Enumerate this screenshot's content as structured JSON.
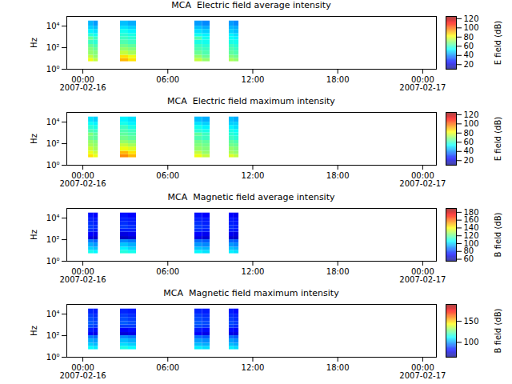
{
  "chart_data": [
    {
      "type": "heatmap",
      "title": "MCA  Electric field average intensity",
      "ylabel": "Hz",
      "log": "y",
      "xlim": [
        "2007-02-15T22:52",
        "2007-02-17T00:58"
      ],
      "xticks": [
        {
          "value": "2007-02-16T00:00",
          "label": "00:00\n2007-02-16"
        },
        {
          "value": "2007-02-16T06:00",
          "label": "06:00"
        },
        {
          "value": "2007-02-16T12:00",
          "label": "12:00"
        },
        {
          "value": "2007-02-16T18:00",
          "label": "18:00"
        },
        {
          "value": "2007-02-17T00:00",
          "label": "00:00\n2007-02-17"
        }
      ],
      "ylim": [
        1,
        80000
      ],
      "yticks": [
        {
          "value": 1,
          "label": "10⁰"
        },
        {
          "value": 100,
          "label": "10²"
        },
        {
          "value": 10000,
          "label": "10⁴"
        }
      ],
      "x_bins": [
        [
          "2007-02-16T00:24",
          "2007-02-16T00:45"
        ],
        [
          "2007-02-16T00:45",
          "2007-02-16T01:05"
        ],
        [
          "2007-02-16T02:39",
          "2007-02-16T03:13"
        ],
        [
          "2007-02-16T03:13",
          "2007-02-16T03:47"
        ],
        [
          "2007-02-16T07:54",
          "2007-02-16T08:26"
        ],
        [
          "2007-02-16T08:26",
          "2007-02-16T08:59"
        ],
        [
          "2007-02-16T10:20",
          "2007-02-16T10:40"
        ],
        [
          "2007-02-16T10:40",
          "2007-02-16T11:01"
        ]
      ],
      "y_bins": [
        5,
        10,
        20,
        50,
        100,
        200,
        500,
        1000,
        2000,
        5000,
        10000,
        30000
      ],
      "cells": [
        [
          80,
          75,
          90,
          85,
          75,
          70,
          72,
          70
        ],
        [
          75,
          70,
          85,
          80,
          70,
          65,
          68,
          66
        ],
        [
          70,
          68,
          75,
          72,
          65,
          62,
          64,
          62
        ],
        [
          68,
          65,
          70,
          68,
          62,
          60,
          62,
          60
        ],
        [
          65,
          62,
          66,
          64,
          60,
          58,
          60,
          58
        ],
        [
          60,
          58,
          62,
          60,
          56,
          55,
          56,
          55
        ],
        [
          65,
          60,
          60,
          58,
          62,
          55,
          54,
          52
        ],
        [
          58,
          55,
          58,
          56,
          55,
          52,
          52,
          50
        ],
        [
          52,
          50,
          55,
          52,
          50,
          48,
          48,
          46
        ],
        [
          48,
          46,
          50,
          48,
          46,
          44,
          45,
          44
        ],
        [
          45,
          42,
          46,
          44,
          42,
          40,
          42,
          40
        ]
      ],
      "colorbar": {
        "label": "E field (dB)",
        "range": [
          10,
          125
        ],
        "ticks": [
          20,
          40,
          60,
          80,
          100,
          120
        ]
      }
    },
    {
      "type": "heatmap",
      "title": "MCA  Electric field maximum intensity",
      "ylabel": "Hz",
      "log": "y",
      "xlim": [
        "2007-02-15T22:52",
        "2007-02-17T00:58"
      ],
      "xticks": [
        {
          "value": "2007-02-16T00:00",
          "label": "00:00\n2007-02-16"
        },
        {
          "value": "2007-02-16T06:00",
          "label": "06:00"
        },
        {
          "value": "2007-02-16T12:00",
          "label": "12:00"
        },
        {
          "value": "2007-02-16T18:00",
          "label": "18:00"
        },
        {
          "value": "2007-02-17T00:00",
          "label": "00:00\n2007-02-17"
        }
      ],
      "ylim": [
        1,
        80000
      ],
      "yticks": [
        {
          "value": 1,
          "label": "10⁰"
        },
        {
          "value": 100,
          "label": "10²"
        },
        {
          "value": 10000,
          "label": "10⁴"
        }
      ],
      "x_bins": [
        [
          "2007-02-16T00:24",
          "2007-02-16T00:45"
        ],
        [
          "2007-02-16T00:45",
          "2007-02-16T01:05"
        ],
        [
          "2007-02-16T02:39",
          "2007-02-16T03:13"
        ],
        [
          "2007-02-16T03:13",
          "2007-02-16T03:47"
        ],
        [
          "2007-02-16T07:54",
          "2007-02-16T08:26"
        ],
        [
          "2007-02-16T08:26",
          "2007-02-16T08:59"
        ],
        [
          "2007-02-16T10:20",
          "2007-02-16T10:40"
        ],
        [
          "2007-02-16T10:40",
          "2007-02-16T11:01"
        ]
      ],
      "y_bins": [
        5,
        10,
        20,
        50,
        100,
        200,
        500,
        1000,
        2000,
        5000,
        10000,
        30000
      ],
      "cells": [
        [
          85,
          80,
          95,
          90,
          80,
          75,
          78,
          75
        ],
        [
          80,
          76,
          90,
          85,
          75,
          70,
          72,
          70
        ],
        [
          76,
          72,
          80,
          78,
          70,
          68,
          70,
          68
        ],
        [
          72,
          70,
          75,
          72,
          68,
          66,
          66,
          65
        ],
        [
          70,
          68,
          70,
          68,
          66,
          64,
          64,
          62
        ],
        [
          66,
          64,
          66,
          64,
          62,
          60,
          60,
          58
        ],
        [
          68,
          64,
          64,
          62,
          64,
          60,
          58,
          56
        ],
        [
          62,
          60,
          62,
          60,
          58,
          56,
          56,
          54
        ],
        [
          58,
          56,
          60,
          56,
          55,
          52,
          52,
          50
        ],
        [
          54,
          52,
          55,
          52,
          50,
          48,
          48,
          48
        ],
        [
          50,
          48,
          52,
          50,
          46,
          44,
          46,
          44
        ]
      ],
      "colorbar": {
        "label": "E field (dB)",
        "range": [
          10,
          125
        ],
        "ticks": [
          20,
          40,
          60,
          80,
          100,
          120
        ]
      }
    },
    {
      "type": "heatmap",
      "title": "MCA  Magnetic field average intensity",
      "ylabel": "Hz",
      "log": "y",
      "xlim": [
        "2007-02-15T22:52",
        "2007-02-17T00:58"
      ],
      "xticks": [
        {
          "value": "2007-02-16T00:00",
          "label": "00:00\n2007-02-16"
        },
        {
          "value": "2007-02-16T06:00",
          "label": "06:00"
        },
        {
          "value": "2007-02-16T12:00",
          "label": "12:00"
        },
        {
          "value": "2007-02-16T18:00",
          "label": "18:00"
        },
        {
          "value": "2007-02-17T00:00",
          "label": "00:00\n2007-02-17"
        }
      ],
      "ylim": [
        1,
        80000
      ],
      "yticks": [
        {
          "value": 1,
          "label": "10⁰"
        },
        {
          "value": 100,
          "label": "10²"
        },
        {
          "value": 10000,
          "label": "10⁴"
        }
      ],
      "x_bins": [
        [
          "2007-02-16T00:24",
          "2007-02-16T00:45"
        ],
        [
          "2007-02-16T00:45",
          "2007-02-16T01:05"
        ],
        [
          "2007-02-16T02:39",
          "2007-02-16T03:13"
        ],
        [
          "2007-02-16T03:13",
          "2007-02-16T03:47"
        ],
        [
          "2007-02-16T07:54",
          "2007-02-16T08:26"
        ],
        [
          "2007-02-16T08:26",
          "2007-02-16T08:59"
        ],
        [
          "2007-02-16T10:20",
          "2007-02-16T10:40"
        ],
        [
          "2007-02-16T10:40",
          "2007-02-16T11:01"
        ]
      ],
      "y_bins": [
        5,
        10,
        20,
        50,
        100,
        200,
        500,
        1000,
        2000,
        5000,
        10000,
        30000
      ],
      "cells": [
        [
          108,
          105,
          110,
          108,
          105,
          102,
          104,
          102
        ],
        [
          100,
          98,
          104,
          100,
          98,
          96,
          98,
          96
        ],
        [
          95,
          92,
          98,
          95,
          92,
          90,
          92,
          90
        ],
        [
          88,
          85,
          90,
          88,
          86,
          84,
          85,
          84
        ],
        [
          68,
          66,
          64,
          66,
          68,
          66,
          66,
          65
        ],
        [
          72,
          70,
          68,
          70,
          72,
          70,
          70,
          68
        ],
        [
          78,
          76,
          76,
          76,
          78,
          76,
          76,
          75
        ],
        [
          80,
          78,
          80,
          78,
          80,
          78,
          78,
          76
        ],
        [
          78,
          76,
          78,
          76,
          78,
          76,
          76,
          75
        ],
        [
          76,
          75,
          76,
          75,
          76,
          75,
          75,
          74
        ],
        [
          74,
          72,
          74,
          72,
          74,
          72,
          72,
          70
        ]
      ],
      "colorbar": {
        "label": "B field (dB)",
        "range": [
          55,
          190
        ],
        "ticks": [
          60,
          80,
          100,
          120,
          140,
          160,
          180
        ]
      }
    },
    {
      "type": "heatmap",
      "title": "MCA  Magnetic field maximum intensity",
      "ylabel": "Hz",
      "log": "y",
      "xlim": [
        "2007-02-15T22:52",
        "2007-02-17T00:58"
      ],
      "xticks": [
        {
          "value": "2007-02-16T00:00",
          "label": "00:00\n2007-02-16"
        },
        {
          "value": "2007-02-16T06:00",
          "label": "06:00"
        },
        {
          "value": "2007-02-16T12:00",
          "label": "12:00"
        },
        {
          "value": "2007-02-16T18:00",
          "label": "18:00"
        },
        {
          "value": "2007-02-17T00:00",
          "label": "00:00\n2007-02-17"
        }
      ],
      "ylim": [
        1,
        80000
      ],
      "yticks": [
        {
          "value": 1,
          "label": "10⁰"
        },
        {
          "value": 100,
          "label": "10²"
        },
        {
          "value": 10000,
          "label": "10⁴"
        }
      ],
      "x_bins": [
        [
          "2007-02-16T00:24",
          "2007-02-16T00:45"
        ],
        [
          "2007-02-16T00:45",
          "2007-02-16T01:05"
        ],
        [
          "2007-02-16T02:39",
          "2007-02-16T03:13"
        ],
        [
          "2007-02-16T03:13",
          "2007-02-16T03:47"
        ],
        [
          "2007-02-16T07:54",
          "2007-02-16T08:26"
        ],
        [
          "2007-02-16T08:26",
          "2007-02-16T08:59"
        ],
        [
          "2007-02-16T10:20",
          "2007-02-16T10:40"
        ],
        [
          "2007-02-16T10:40",
          "2007-02-16T11:01"
        ]
      ],
      "y_bins": [
        5,
        10,
        20,
        50,
        100,
        200,
        500,
        1000,
        2000,
        5000,
        10000,
        30000
      ],
      "cells": [
        [
          112,
          110,
          115,
          112,
          110,
          108,
          110,
          108
        ],
        [
          106,
          104,
          108,
          106,
          104,
          102,
          104,
          102
        ],
        [
          102,
          100,
          104,
          102,
          100,
          98,
          100,
          98
        ],
        [
          96,
          94,
          98,
          96,
          94,
          92,
          94,
          92
        ],
        [
          80,
          78,
          76,
          78,
          80,
          78,
          78,
          77
        ],
        [
          84,
          82,
          80,
          82,
          84,
          82,
          82,
          80
        ],
        [
          90,
          88,
          88,
          88,
          90,
          88,
          88,
          86
        ],
        [
          92,
          90,
          92,
          90,
          92,
          90,
          90,
          88
        ],
        [
          90,
          88,
          90,
          88,
          90,
          88,
          88,
          86
        ],
        [
          88,
          86,
          88,
          86,
          88,
          86,
          86,
          85
        ],
        [
          85,
          84,
          85,
          84,
          85,
          84,
          84,
          82
        ]
      ],
      "colorbar": {
        "label": "B field (dB)",
        "range": [
          65,
          190
        ],
        "ticks": [
          100,
          150
        ]
      }
    }
  ]
}
